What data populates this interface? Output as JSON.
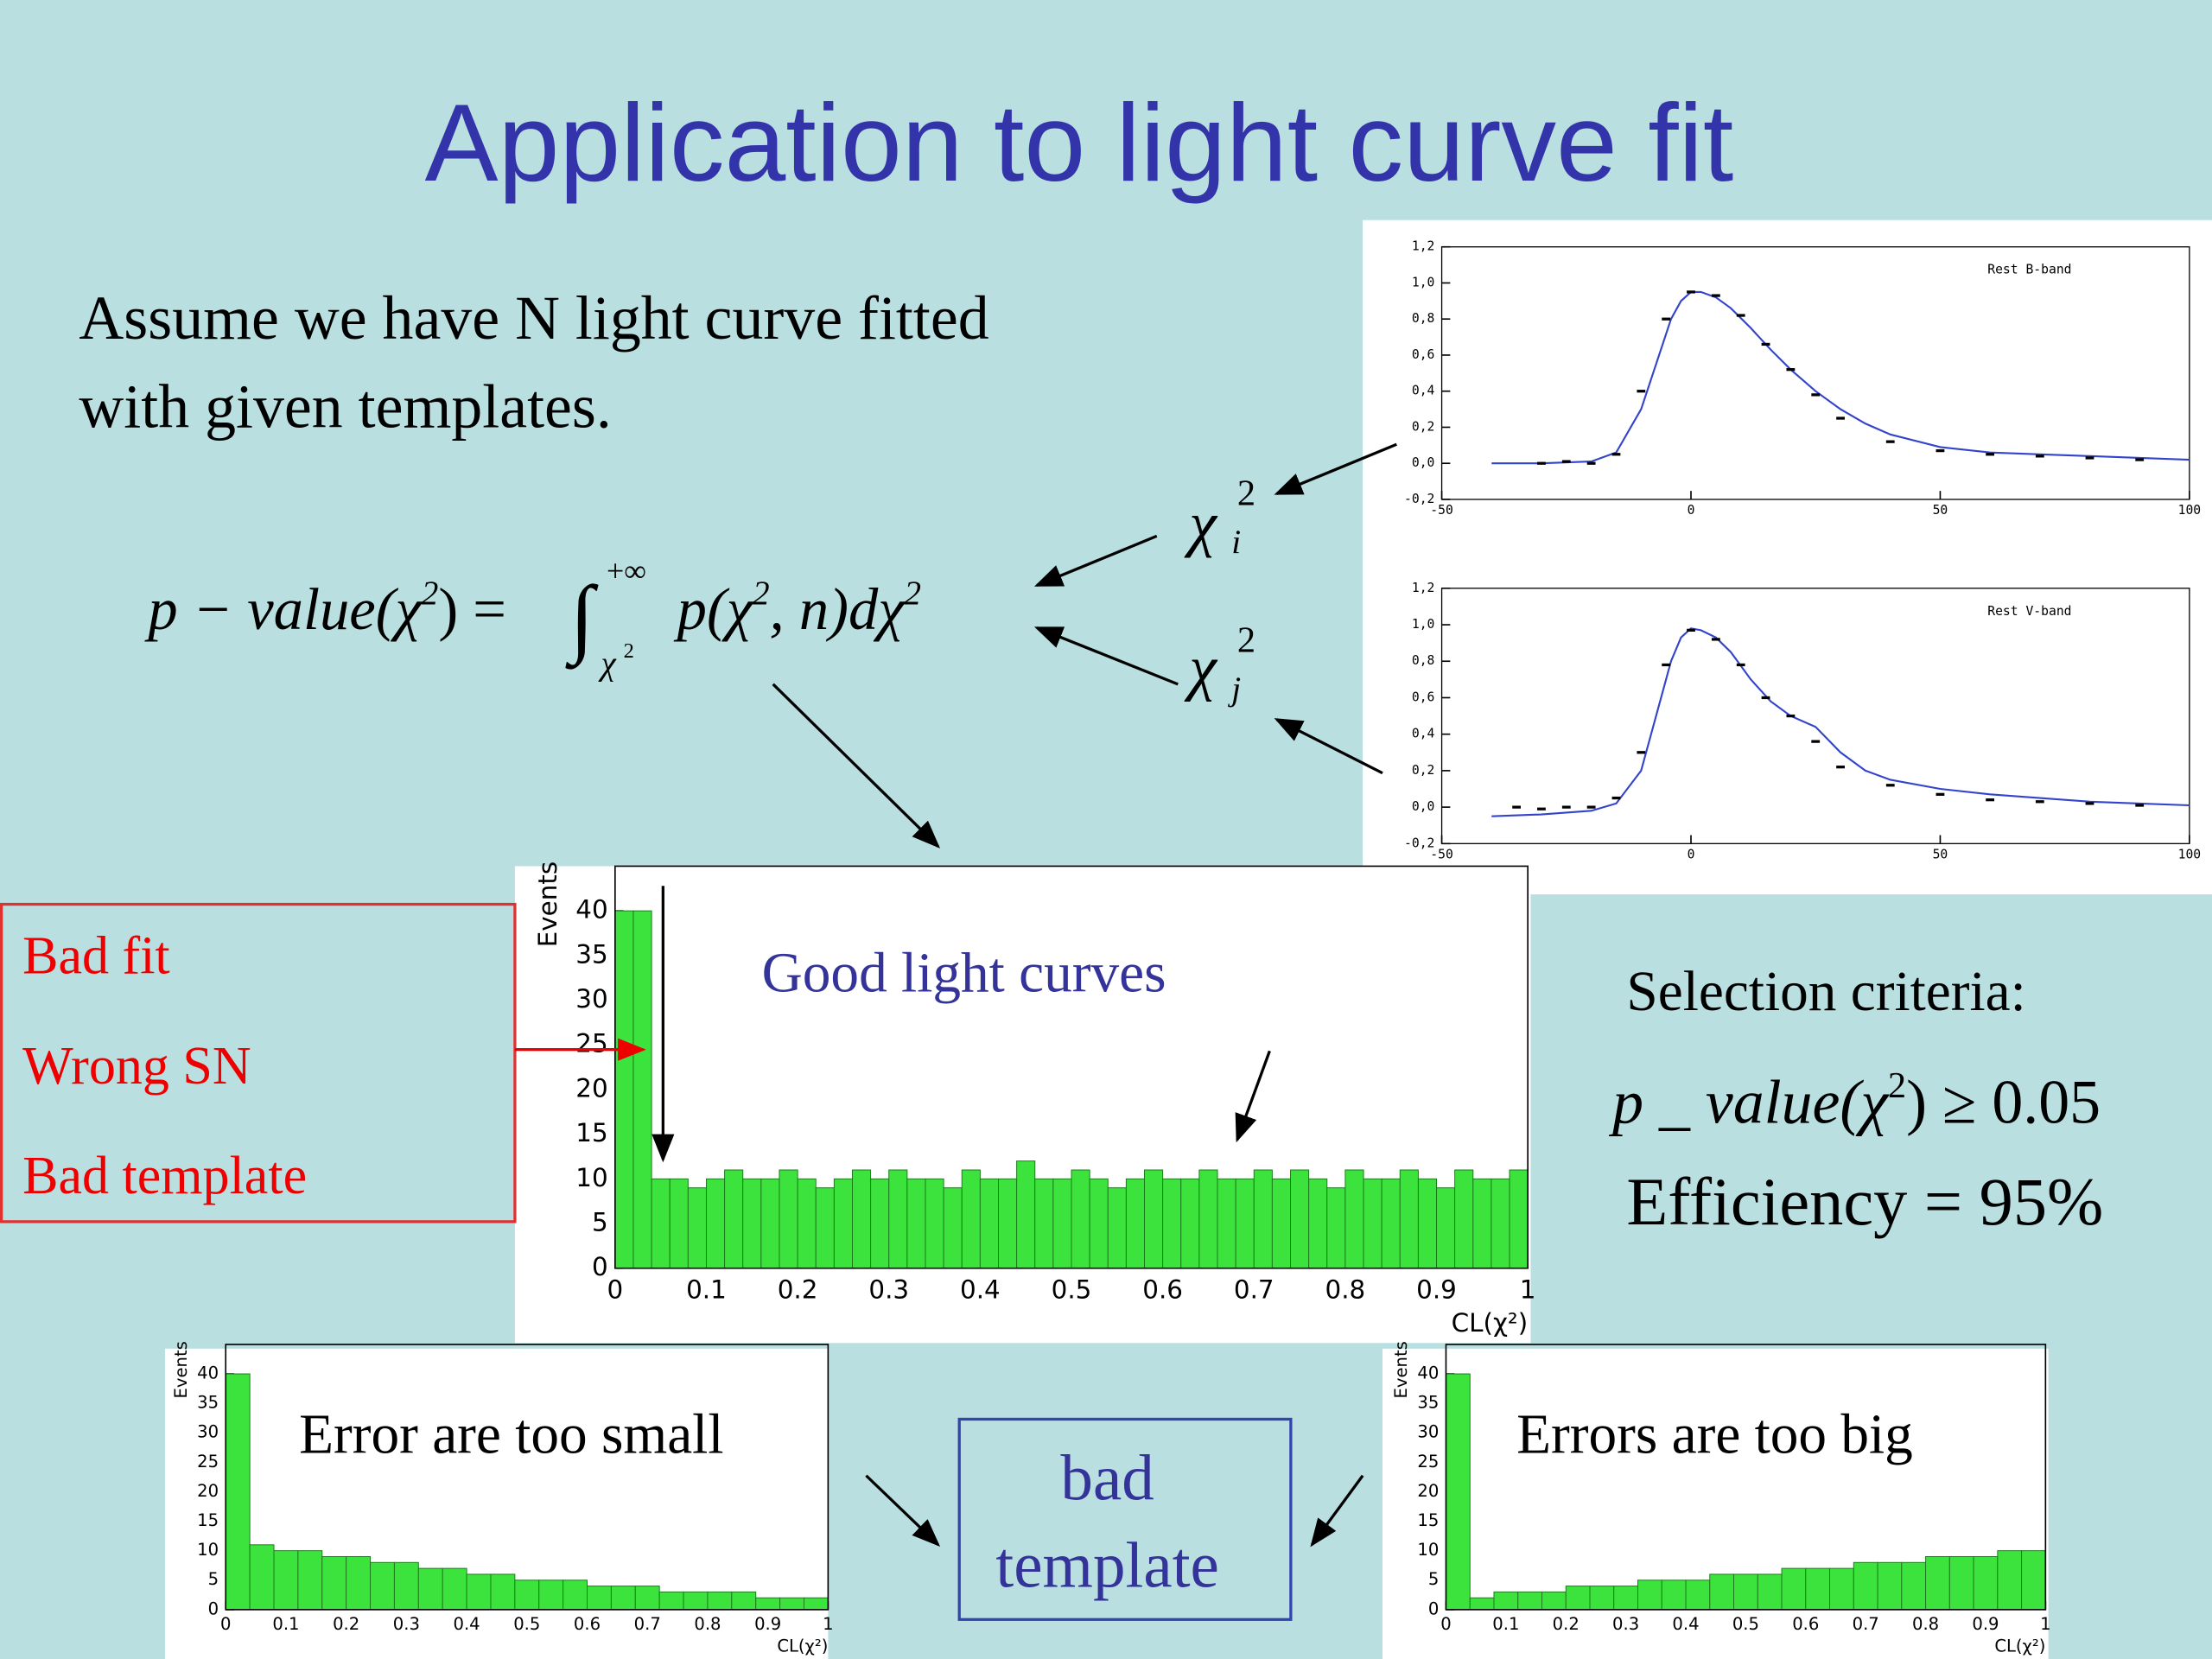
{
  "title": "Application to light curve fit",
  "intro": [
    "Assume we have N light curve fitted",
    "with given templates."
  ],
  "formula": [
    "p − value(χ",
    "2",
    ") =",
    "∫",
    "+∞",
    "χ",
    "2",
    "p(χ",
    "2",
    ", n)dχ",
    "2"
  ],
  "chi_i": [
    "χ",
    "2",
    "i"
  ],
  "chi_j": [
    "χ",
    "2",
    "j"
  ],
  "lightcurves": [
    {
      "type": "line",
      "label": "Rest B-band",
      "points": {
        "x": [
          -30,
          -25,
          -20,
          -15,
          -10,
          -5,
          0,
          5,
          10,
          15,
          20,
          25,
          30,
          40,
          50,
          60,
          70,
          80,
          90
        ],
        "values": [
          0,
          0.01,
          0,
          0.05,
          0.4,
          0.8,
          0.95,
          0.93,
          0.82,
          0.66,
          0.52,
          0.38,
          0.25,
          0.12,
          0.07,
          0.05,
          0.04,
          0.03,
          0.02
        ]
      },
      "fit": {
        "color": "#3344cc",
        "x": [
          -40,
          -30,
          -20,
          -15,
          -10,
          -7,
          -4,
          -2,
          0,
          2,
          5,
          8,
          12,
          16,
          20,
          25,
          30,
          35,
          40,
          50,
          60,
          70,
          80,
          90,
          100
        ],
        "values": [
          0,
          0,
          0.01,
          0.06,
          0.3,
          0.55,
          0.8,
          0.9,
          0.95,
          0.95,
          0.92,
          0.86,
          0.75,
          0.63,
          0.52,
          0.4,
          0.3,
          0.22,
          0.16,
          0.09,
          0.06,
          0.05,
          0.04,
          0.03,
          0.02
        ]
      },
      "xlim": [
        -50,
        100
      ],
      "xticks": [
        -50,
        0,
        50,
        100
      ],
      "ylim": [
        -0.2,
        1.2
      ],
      "yticks": [
        {
          "value": -0.2,
          "label": "-0,2"
        },
        {
          "value": 0,
          "label": "0,0"
        },
        {
          "value": 0.2,
          "label": "0,2"
        },
        {
          "value": 0.4,
          "label": "0,4"
        },
        {
          "value": 0.6,
          "label": "0,6"
        },
        {
          "value": 0.8,
          "label": "0,8"
        },
        {
          "value": 1.0,
          "label": "1,0"
        },
        {
          "value": 1.2,
          "label": "1,2"
        }
      ]
    },
    {
      "type": "line",
      "label": "Rest V-band",
      "points": {
        "x": [
          -35,
          -30,
          -25,
          -20,
          -15,
          -10,
          -5,
          0,
          5,
          10,
          15,
          20,
          25,
          30,
          40,
          50,
          60,
          70,
          80,
          90
        ],
        "values": [
          0,
          -0.01,
          0,
          0,
          0.05,
          0.3,
          0.78,
          0.97,
          0.92,
          0.78,
          0.6,
          0.5,
          0.36,
          0.22,
          0.12,
          0.07,
          0.04,
          0.03,
          0.02,
          0.01
        ]
      },
      "fit": {
        "color": "#3344cc",
        "x": [
          -40,
          -30,
          -20,
          -15,
          -10,
          -7,
          -4,
          -2,
          0,
          2,
          5,
          8,
          12,
          16,
          20,
          25,
          30,
          35,
          40,
          50,
          60,
          70,
          80,
          90,
          100
        ],
        "values": [
          -0.05,
          -0.04,
          -0.02,
          0.02,
          0.2,
          0.5,
          0.8,
          0.93,
          0.98,
          0.97,
          0.93,
          0.85,
          0.7,
          0.58,
          0.5,
          0.44,
          0.3,
          0.2,
          0.15,
          0.1,
          0.07,
          0.05,
          0.03,
          0.02,
          0.01
        ]
      },
      "xlim": [
        -50,
        100
      ],
      "xticks": [
        -50,
        0,
        50,
        100
      ],
      "ylim": [
        -0.2,
        1.2
      ],
      "yticks": [
        {
          "value": -0.2,
          "label": "-0,2"
        },
        {
          "value": 0,
          "label": "0,0"
        },
        {
          "value": 0.2,
          "label": "0,2"
        },
        {
          "value": 0.4,
          "label": "0,4"
        },
        {
          "value": 0.6,
          "label": "0,6"
        },
        {
          "value": 0.8,
          "label": "0,8"
        },
        {
          "value": 1.0,
          "label": "1,0"
        },
        {
          "value": 1.2,
          "label": "1,2"
        }
      ]
    }
  ],
  "main_histogram": {
    "type": "histogram",
    "color": "#3de33d",
    "annotation": "Good light curves",
    "ylabel": "Events",
    "xlabel": "CL(χ²)",
    "bins": [
      0,
      0.02,
      0.04,
      0.06,
      0.08,
      0.1,
      0.12,
      0.14,
      0.16,
      0.18,
      0.2,
      0.22,
      0.24,
      0.26,
      0.28,
      0.3,
      0.32,
      0.34,
      0.36,
      0.38,
      0.4,
      0.42,
      0.44,
      0.46,
      0.48,
      0.5,
      0.52,
      0.54,
      0.56,
      0.58,
      0.6,
      0.62,
      0.64,
      0.66,
      0.68,
      0.7,
      0.72,
      0.74,
      0.76,
      0.78,
      0.8,
      0.82,
      0.84,
      0.86,
      0.88,
      0.9,
      0.92,
      0.94,
      0.96,
      0.98,
      1
    ],
    "values": [
      40,
      40,
      10,
      10,
      9,
      10,
      11,
      10,
      10,
      11,
      10,
      9,
      10,
      11,
      10,
      11,
      10,
      10,
      9,
      11,
      10,
      10,
      12,
      10,
      10,
      11,
      10,
      9,
      10,
      11,
      10,
      10,
      11,
      10,
      10,
      11,
      10,
      11,
      10,
      9,
      11,
      10,
      10,
      11,
      10,
      9,
      11,
      10,
      10,
      11
    ],
    "xlim": [
      0,
      1
    ],
    "xticks": [
      0,
      0.1,
      0.2,
      0.3,
      0.4,
      0.5,
      0.6,
      0.7,
      0.8,
      0.9,
      1
    ],
    "ylim": [
      0,
      45
    ],
    "yticks": [
      0,
      5,
      10,
      15,
      20,
      25,
      30,
      35,
      40
    ]
  },
  "rejected": [
    "Bad fit",
    "Wrong SN",
    "Bad template"
  ],
  "selection": {
    "heading": "Selection criteria:",
    "formula": [
      "p _ value(χ",
      "2",
      ") ≥ 0.05"
    ],
    "efficiency": "Efficiency = 95%"
  },
  "small_histograms": [
    {
      "type": "histogram",
      "color": "#3de33d",
      "annotation": "Error are too small",
      "ylabel": "Events",
      "xlabel": "CL(χ²)",
      "bins": [
        0,
        0.04,
        0.08,
        0.12,
        0.16,
        0.2,
        0.24,
        0.28,
        0.32,
        0.36,
        0.4,
        0.44,
        0.48,
        0.52,
        0.56,
        0.6,
        0.64,
        0.68,
        0.72,
        0.76,
        0.8,
        0.84,
        0.88,
        0.92,
        0.96,
        1
      ],
      "values": [
        40,
        11,
        10,
        10,
        9,
        9,
        8,
        8,
        7,
        7,
        6,
        6,
        5,
        5,
        5,
        4,
        4,
        4,
        3,
        3,
        3,
        3,
        2,
        2,
        2
      ],
      "xlim": [
        0,
        1
      ],
      "xticks": [
        0,
        0.1,
        0.2,
        0.3,
        0.4,
        0.5,
        0.6,
        0.7,
        0.8,
        0.9,
        1
      ],
      "ylim": [
        0,
        45
      ],
      "yticks": [
        0,
        5,
        10,
        15,
        20,
        25,
        30,
        35,
        40
      ]
    },
    {
      "type": "histogram",
      "color": "#3de33d",
      "annotation": "Errors are too big",
      "ylabel": "Events",
      "xlabel": "CL(χ²)",
      "bins": [
        0,
        0.04,
        0.08,
        0.12,
        0.16,
        0.2,
        0.24,
        0.28,
        0.32,
        0.36,
        0.4,
        0.44,
        0.48,
        0.52,
        0.56,
        0.6,
        0.64,
        0.68,
        0.72,
        0.76,
        0.8,
        0.84,
        0.88,
        0.92,
        0.96,
        1
      ],
      "values": [
        40,
        2,
        3,
        3,
        3,
        4,
        4,
        4,
        5,
        5,
        5,
        6,
        6,
        6,
        7,
        7,
        7,
        8,
        8,
        8,
        9,
        9,
        9,
        10,
        10
      ],
      "xlim": [
        0,
        1
      ],
      "xticks": [
        0,
        0.1,
        0.2,
        0.3,
        0.4,
        0.5,
        0.6,
        0.7,
        0.8,
        0.9,
        1
      ],
      "ylim": [
        0,
        45
      ],
      "yticks": [
        0,
        5,
        10,
        15,
        20,
        25,
        30,
        35,
        40
      ]
    }
  ],
  "bad_template": [
    "bad",
    "template"
  ]
}
